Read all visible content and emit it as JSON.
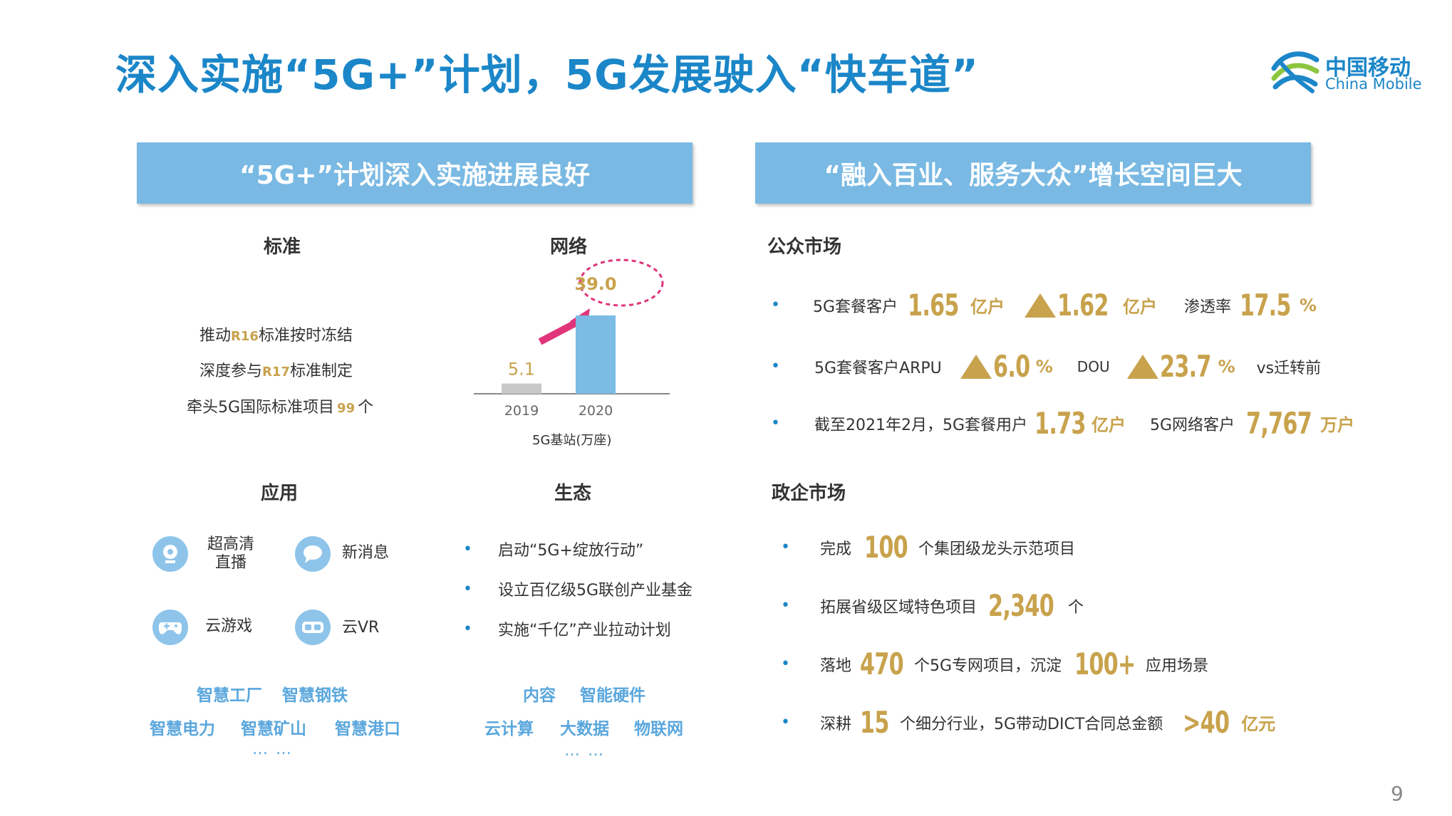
{
  "title": "深入实施“5G+”计划，5G发展驶入“快车道”",
  "logo": {
    "cn": "中国移动",
    "en": "China Mobile",
    "icon": "china-mobile-logo-icon"
  },
  "left_banner": "“5G+”计划深入实施进展良好",
  "right_banner": "“融入百业、服务大众”增长空间巨大",
  "standard": {
    "heading": "标准",
    "l1_pre": "推动",
    "l1_kw": "R16",
    "l1_post": "标准按时冻结",
    "l2_pre": "深度参与",
    "l2_kw": "R17",
    "l2_post": "标准制定",
    "l3_pre": "牵头5G国际标准项目",
    "l3_kw": "99",
    "l3_post": "个"
  },
  "network": {
    "heading": "网络",
    "xlabel": "5G基站(万座)",
    "chart_data": {
      "type": "bar",
      "categories": [
        "2019",
        "2020"
      ],
      "values": [
        5.1,
        39.0
      ],
      "value_labels": [
        "5.1",
        "39.0"
      ],
      "xlabel": "5G基站(万座)",
      "colors": [
        "#c8c8c8",
        "#7bbbe4"
      ]
    }
  },
  "apps": {
    "heading": "应用",
    "items": [
      {
        "label": "超高清\n直播",
        "icon": "webcam-icon"
      },
      {
        "label": "新消息",
        "icon": "message-icon"
      },
      {
        "label": "云游戏",
        "icon": "gamepad-icon"
      },
      {
        "label": "云VR",
        "icon": "vr-glasses-icon"
      }
    ],
    "kw_row1": [
      "智慧工厂",
      "智慧钢铁"
    ],
    "kw_row2": [
      "智慧电力",
      "智慧矿山",
      "智慧港口"
    ],
    "more": "… …"
  },
  "ecology": {
    "heading": "生态",
    "bullets": [
      "启动“5G+绽放行动”",
      "设立百亿级5G联创产业基金",
      "实施“千亿”产业拉动计划"
    ],
    "kw_row1": [
      "内容",
      "智能硬件"
    ],
    "kw_row2": [
      "云计算",
      "大数据",
      "物联网"
    ],
    "more": "… …"
  },
  "public": {
    "heading": "公众市场",
    "r1": {
      "t1": "5G套餐客户",
      "v1": "1.65",
      "u1": "亿户",
      "v2": "1.62",
      "u2": "亿户",
      "t3": "渗透率",
      "v3": "17.5",
      "u3": "%"
    },
    "r2": {
      "t1": "5G套餐客户ARPU",
      "v1": "6.0",
      "u1": "%",
      "t2": "DOU",
      "v2": "23.7",
      "u2": "%",
      "t3": "vs迁转前"
    },
    "r3": {
      "t1": "截至2021年2月，5G套餐用户",
      "v1": "1.73",
      "u1": "亿户",
      "t2": "5G网络客户",
      "v2": "7,767",
      "u2": "万户"
    }
  },
  "enterprise": {
    "heading": "政企市场",
    "r1": {
      "t1": "完成",
      "v1": "100",
      "t2": "个集团级龙头示范项目"
    },
    "r2": {
      "t1": "拓展省级区域特色项目",
      "v1": "2,340",
      "t2": "个"
    },
    "r3": {
      "t1": "落地",
      "v1": "470",
      "t2": "个5G专网项目，沉淀",
      "v2": "100+",
      "t3": "应用场景"
    },
    "r4": {
      "t1": "深耕",
      "v1": "15",
      "t2": "个细分行业，5G带动DICT合同总金额",
      "v2": ">40",
      "u2": "亿元"
    }
  },
  "page_number": "9",
  "colors": {
    "title": "#1b86c8",
    "banner": "#79b9e3",
    "gold": "#c8a24c",
    "arrow": "#e0357a",
    "keyword_blue": "#5aa7dd"
  }
}
